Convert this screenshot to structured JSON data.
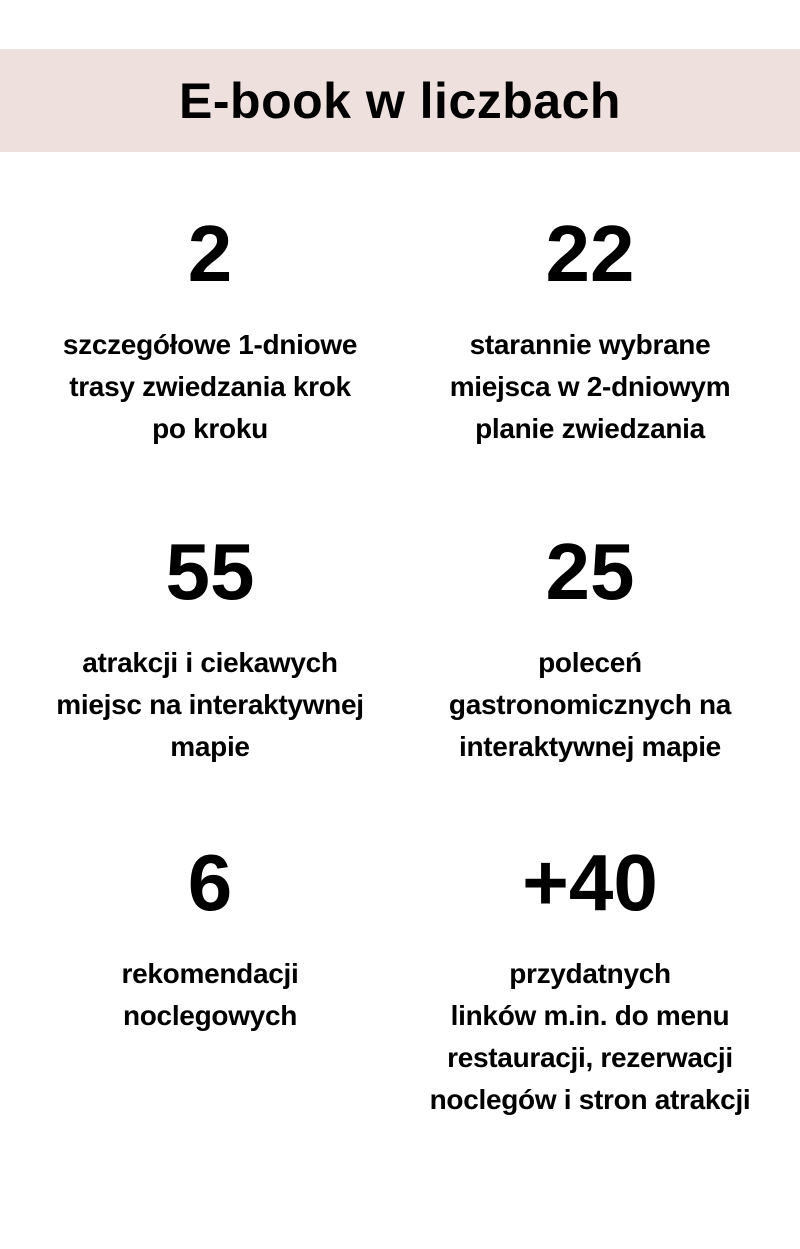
{
  "page": {
    "background_color": "#ffffff",
    "text_color": "#000000"
  },
  "header": {
    "title": "E-book w liczbach",
    "band_color": "#eee0dd"
  },
  "stats": [
    {
      "id": "routes",
      "number": "2",
      "lines": [
        "szczegółowe 1-dniowe",
        "trasy zwiedzania krok",
        "po kroku"
      ]
    },
    {
      "id": "places",
      "number": "22",
      "lines": [
        "starannie wybrane",
        "miejsca w 2-dniowym",
        "planie zwiedzania"
      ]
    },
    {
      "id": "attractions",
      "number": "55",
      "lines": [
        "atrakcji i ciekawych",
        "miejsc na interaktywnej",
        "mapie"
      ]
    },
    {
      "id": "food",
      "number": "25",
      "lines": [
        "poleceń",
        "gastronomicznych na",
        "interaktywnej mapie"
      ]
    },
    {
      "id": "accommodation",
      "number": "6",
      "lines": [
        "rekomendacji",
        "noclegowych"
      ]
    },
    {
      "id": "links",
      "number": "+40",
      "lines": [
        "przydatnych",
        "linków m.in. do menu",
        "restauracji, rezerwacji",
        "noclegów i stron atrakcji"
      ]
    }
  ]
}
